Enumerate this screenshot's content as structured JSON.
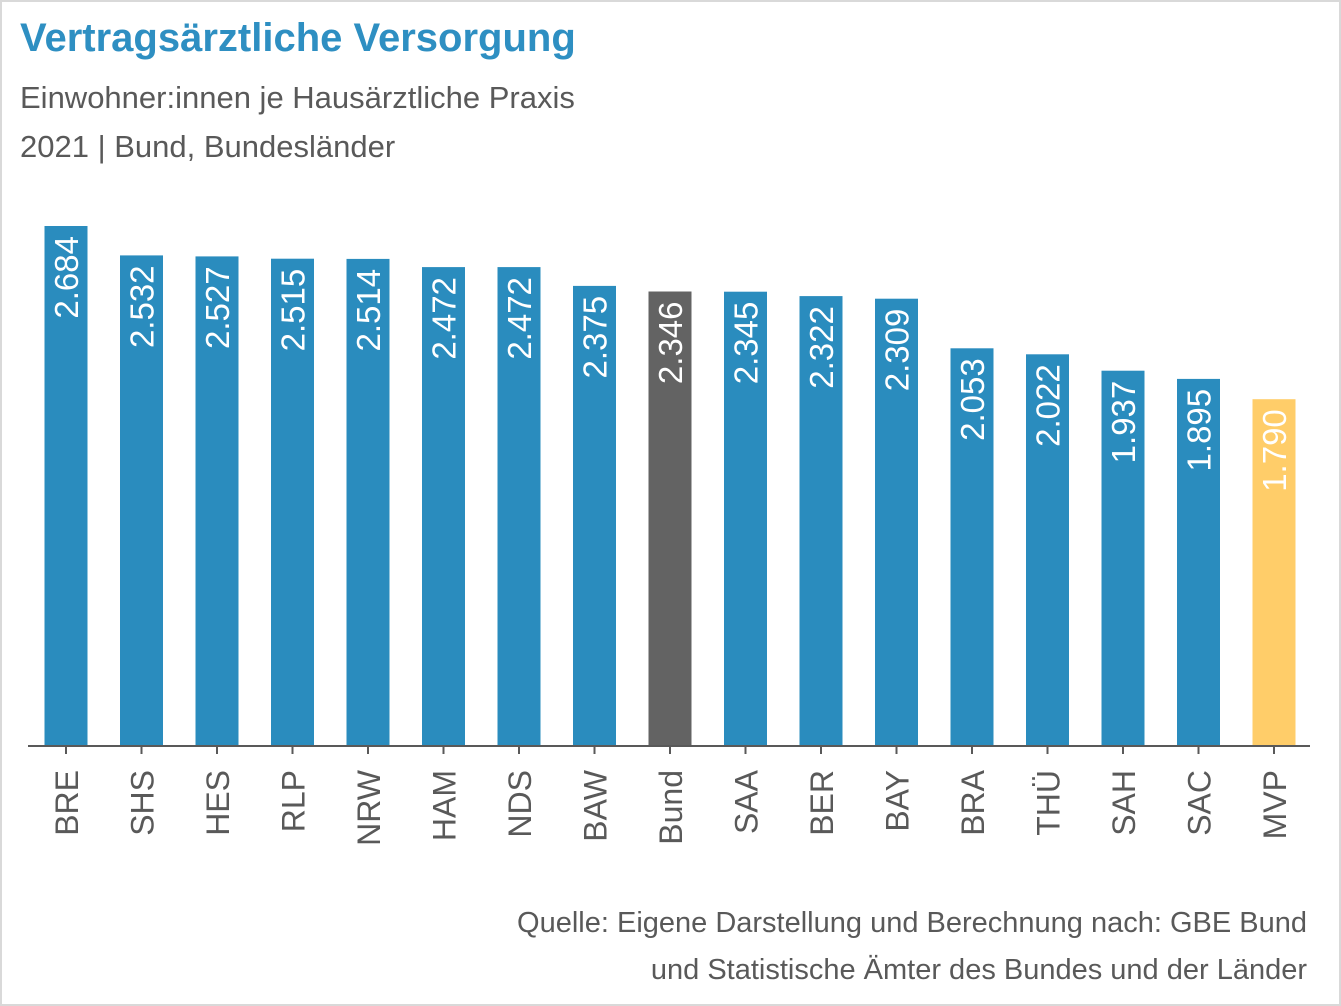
{
  "title": "Vertragsärztliche Versorgung",
  "subtitle_line1": "Einwohner:innen je Hausärztliche Praxis",
  "subtitle_line2": "2021 | Bund, Bundesländer",
  "source_line1": "Quelle: Eigene Darstellung und Berechnung nach: GBE Bund",
  "source_line2": "und Statistische Ämter des Bundes und der Länder",
  "colors": {
    "default_bar": "#2a8cbe",
    "bund_bar": "#636363",
    "mvp_bar": "#ffcd69",
    "axis": "#595959",
    "bar_label_on_highlight": "#595959"
  },
  "chart_data": {
    "type": "bar",
    "categories": [
      "BRE",
      "SHS",
      "HES",
      "RLP",
      "NRW",
      "HAM",
      "NDS",
      "BAW",
      "Bund",
      "SAA",
      "BER",
      "BAY",
      "BRA",
      "THÜ",
      "SAH",
      "SAC",
      "MVP"
    ],
    "values": [
      2684,
      2532,
      2527,
      2515,
      2514,
      2472,
      2472,
      2375,
      2346,
      2345,
      2322,
      2309,
      2053,
      2022,
      1937,
      1895,
      1790
    ],
    "value_labels": [
      "2.684",
      "2.532",
      "2.527",
      "2.515",
      "2.514",
      "2.472",
      "2.472",
      "2.375",
      "2.346",
      "2.345",
      "2.322",
      "2.309",
      "2.053",
      "2.022",
      "1.937",
      "1.895",
      "1.790"
    ],
    "highlight": {
      "Bund": "bund_bar",
      "MVP": "mvp_bar"
    },
    "ylim": [
      0,
      2684
    ],
    "grid": false,
    "legend": "none"
  }
}
